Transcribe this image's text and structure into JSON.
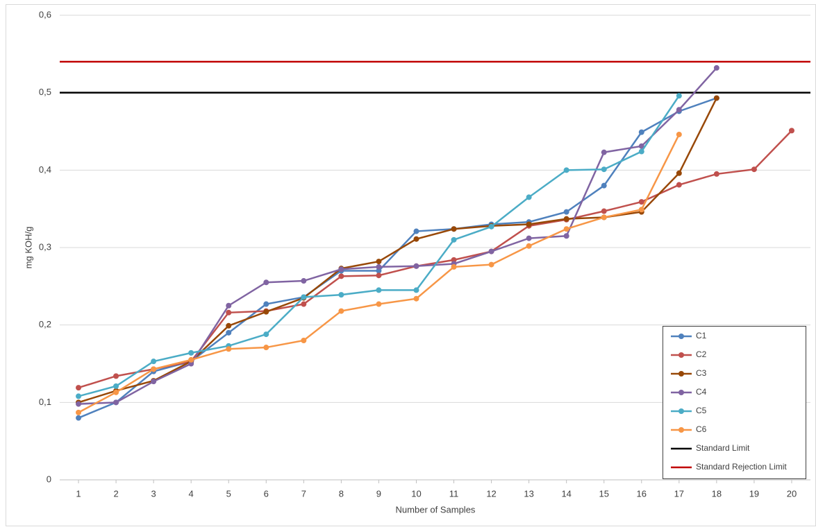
{
  "chart_data": {
    "type": "line",
    "xlabel": "Number of Samples",
    "ylabel": "mg KOH/g",
    "x": [
      1,
      2,
      3,
      4,
      5,
      6,
      7,
      8,
      9,
      10,
      11,
      12,
      13,
      14,
      15,
      16,
      17,
      18,
      19,
      20
    ],
    "xlim": [
      0.5,
      20.5
    ],
    "xticks": [
      1,
      2,
      3,
      4,
      5,
      6,
      7,
      8,
      9,
      10,
      11,
      12,
      13,
      14,
      15,
      16,
      17,
      18,
      19,
      20
    ],
    "ylim": [
      0,
      0.6
    ],
    "yticks": [
      0,
      {
        "value": 0.1,
        "label": "0,1"
      },
      {
        "value": 0.2,
        "label": "0,2"
      },
      {
        "value": 0.3,
        "label": "0,3"
      },
      {
        "value": 0.4,
        "label": "0,4"
      },
      {
        "value": 0.5,
        "label": "0,5"
      },
      {
        "value": 0.6,
        "label": "0,6"
      }
    ],
    "grid": true,
    "legend": "lower right",
    "series": [
      {
        "name": "C1",
        "color": "#4f81bd",
        "values": [
          0.08,
          0.1,
          0.14,
          0.153,
          0.19,
          0.227,
          0.236,
          0.27,
          0.27,
          0.321,
          0.324,
          0.33,
          0.333,
          0.346,
          0.38,
          0.449,
          0.476,
          0.493,
          null,
          null
        ]
      },
      {
        "name": "C2",
        "color": "#c0504d",
        "values": [
          0.119,
          0.134,
          0.143,
          0.153,
          0.216,
          0.218,
          0.227,
          0.263,
          0.264,
          0.276,
          0.284,
          0.295,
          0.328,
          0.336,
          0.347,
          0.359,
          0.381,
          0.395,
          0.401,
          0.451
        ]
      },
      {
        "name": "C3",
        "color": "#984807",
        "values": [
          0.1,
          0.115,
          0.128,
          0.153,
          0.199,
          0.217,
          0.235,
          0.273,
          0.282,
          0.311,
          0.324,
          0.328,
          0.33,
          0.337,
          0.339,
          0.346,
          0.396,
          0.493,
          null,
          null
        ]
      },
      {
        "name": "C4",
        "color": "#8064a2",
        "values": [
          0.098,
          0.1,
          0.127,
          0.15,
          0.225,
          0.255,
          0.257,
          0.272,
          0.275,
          0.276,
          0.279,
          0.295,
          0.312,
          0.315,
          0.423,
          0.431,
          0.478,
          0.532,
          null,
          null
        ]
      },
      {
        "name": "C5",
        "color": "#4bacc6",
        "values": [
          0.108,
          0.121,
          0.153,
          0.164,
          0.173,
          0.188,
          0.236,
          0.239,
          0.245,
          0.245,
          0.31,
          0.327,
          0.365,
          0.4,
          0.401,
          0.424,
          0.496,
          null,
          null,
          null
        ]
      },
      {
        "name": "C6",
        "color": "#f79646",
        "values": [
          0.087,
          0.113,
          0.143,
          0.155,
          0.169,
          0.171,
          0.18,
          0.218,
          0.227,
          0.234,
          0.275,
          0.278,
          0.302,
          0.324,
          0.339,
          0.349,
          0.446,
          null,
          null,
          null
        ]
      }
    ],
    "reference_lines": [
      {
        "name": "Standard Limit",
        "color": "#000000",
        "value": 0.5
      },
      {
        "name": "Standard Rejection Limit",
        "color": "#c00000",
        "value": 0.54
      }
    ]
  }
}
